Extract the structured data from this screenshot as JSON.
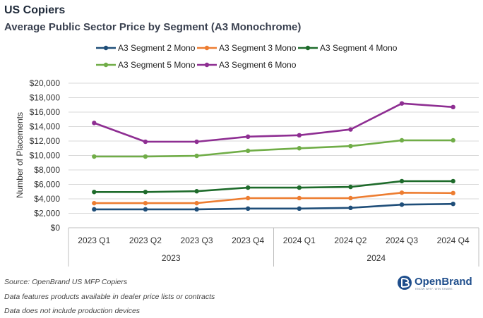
{
  "title": "US Copiers",
  "subtitle": "Average Public Sector Price by Segment (A3 Monochrome)",
  "footnotes": [
    "Source: OpenBrand US MFP Copiers",
    "Data features products available in dealer price lists or contracts",
    "Data does not include production devices"
  ],
  "logo": {
    "name": "OpenBrand",
    "tagline": "KNOW WHY. WIN SHARE."
  },
  "colors": {
    "A3 Segment 2 Mono": "#1f4e79",
    "A3 Segment 3 Mono": "#ed7d31",
    "A3 Segment 4 Mono": "#1e6b2b",
    "A3 Segment 5 Mono": "#70ad47",
    "A3 Segment 6 Mono": "#8e2e92",
    "grid": "#d9d9d9",
    "brand": "#1f4e8c"
  },
  "chart_data": {
    "type": "line",
    "title": "US Copiers",
    "subtitle": "Average Public Sector Price by Segment (A3 Monochrome)",
    "categories": [
      "2023 Q1",
      "2023 Q2",
      "2023 Q3",
      "2023 Q4",
      "2024 Q1",
      "2024 Q2",
      "2024 Q3",
      "2024 Q4"
    ],
    "category_groups": [
      {
        "label": "2023",
        "span": 4
      },
      {
        "label": "2024",
        "span": 4
      }
    ],
    "ylabel": "Number of Placements",
    "xlabel": "",
    "ylim": [
      0,
      20000
    ],
    "yticks": [
      0,
      2000,
      4000,
      6000,
      8000,
      10000,
      12000,
      14000,
      16000,
      18000,
      20000
    ],
    "ytick_labels": [
      "$0",
      "$2,000",
      "$4,000",
      "$6,000",
      "$8,000",
      "$10,000",
      "$12,000",
      "$14,000",
      "$16,000",
      "$18,000",
      "$20,000"
    ],
    "grid": true,
    "legend_position": "top",
    "series": [
      {
        "name": "A3 Segment 2 Mono",
        "values": [
          2550,
          2550,
          2550,
          2650,
          2650,
          2750,
          3200,
          3300
        ]
      },
      {
        "name": "A3 Segment 3 Mono",
        "values": [
          3400,
          3400,
          3400,
          4100,
          4100,
          4100,
          4850,
          4800
        ]
      },
      {
        "name": "A3 Segment 4 Mono",
        "values": [
          4950,
          4950,
          5050,
          5550,
          5550,
          5650,
          6450,
          6450
        ]
      },
      {
        "name": "A3 Segment 5 Mono",
        "values": [
          9850,
          9850,
          9950,
          10650,
          11000,
          11300,
          12100,
          12100
        ]
      },
      {
        "name": "A3 Segment 6 Mono",
        "values": [
          14500,
          11900,
          11900,
          12600,
          12800,
          13600,
          17200,
          16700
        ]
      }
    ]
  }
}
